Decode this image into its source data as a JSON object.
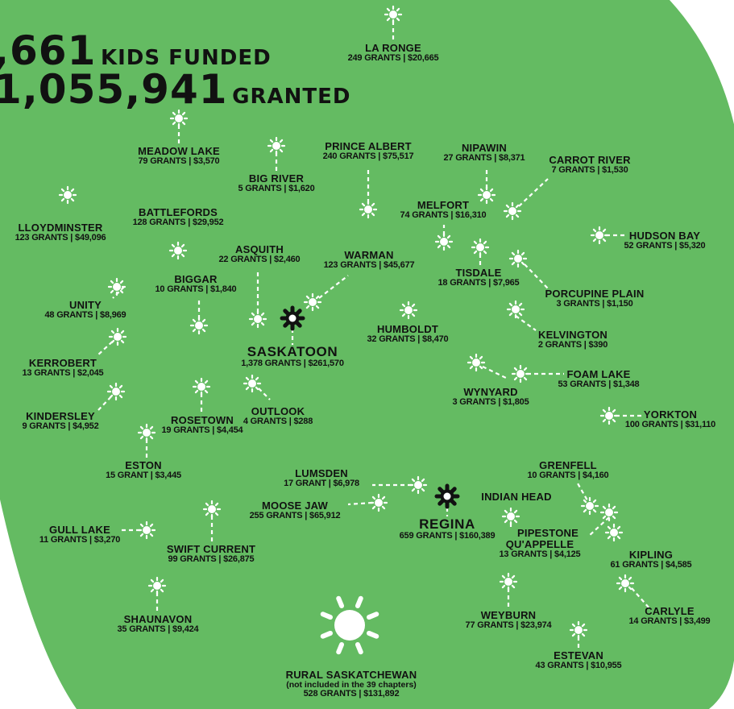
{
  "colors": {
    "region": "#64bb62",
    "marker": "#ffffff",
    "major_city_marker": "#111111",
    "text": "#111111"
  },
  "headline": {
    "kids_number": ",661",
    "kids_label": "KIDS FUNDED",
    "granted_number": "1,055,941",
    "granted_label": "GRANTED"
  },
  "icons": {
    "marker": "sun-icon",
    "major_city": "sun-gear-icon"
  },
  "cities": [
    {
      "key": "la-ronge",
      "name": "LA RONGE",
      "stats": "249 GRANTS | $20,665"
    },
    {
      "key": "meadow-lake",
      "name": "MEADOW LAKE",
      "stats": "79 GRANTS | $3,570"
    },
    {
      "key": "big-river",
      "name": "BIG RIVER",
      "stats": "5 GRANTS | $1,620"
    },
    {
      "key": "prince-albert",
      "name": "PRINCE ALBERT",
      "stats": "240 GRANTS | $75,517"
    },
    {
      "key": "nipawin",
      "name": "NIPAWIN",
      "stats": "27 GRANTS | $8,371"
    },
    {
      "key": "carrot-river",
      "name": "CARROT RIVER",
      "stats": "7 GRANTS | $1,530"
    },
    {
      "key": "melfort",
      "name": "MELFORT",
      "stats": "74 GRANTS | $16,310"
    },
    {
      "key": "lloydminster",
      "name": "LLOYDMINSTER",
      "stats": "123 GRANTS | $49,096"
    },
    {
      "key": "battlefords",
      "name": "BATTLEFORDS",
      "stats": "128 GRANTS | $29,952"
    },
    {
      "key": "hudson-bay",
      "name": "HUDSON BAY",
      "stats": "52 GRANTS | $5,320"
    },
    {
      "key": "asquith",
      "name": "ASQUITH",
      "stats": "22 GRANTS | $2,460"
    },
    {
      "key": "warman",
      "name": "WARMAN",
      "stats": "123 GRANTS | $45,677"
    },
    {
      "key": "tisdale",
      "name": "TISDALE",
      "stats": "18 GRANTS | $7,965"
    },
    {
      "key": "biggar",
      "name": "BIGGAR",
      "stats": "10 GRANTS | $1,840"
    },
    {
      "key": "porcupine-plain",
      "name": "PORCUPINE PLAIN",
      "stats": "3 GRANTS | $1,150"
    },
    {
      "key": "unity",
      "name": "UNITY",
      "stats": "48 GRANTS | $8,969"
    },
    {
      "key": "humboldt",
      "name": "HUMBOLDT",
      "stats": "32 GRANTS | $8,470"
    },
    {
      "key": "kelvington",
      "name": "KELVINGTON",
      "stats": "2 GRANTS | $390"
    },
    {
      "key": "saskatoon",
      "name": "SASKATOON",
      "stats": "1,378 GRANTS | $261,570"
    },
    {
      "key": "kerrobert",
      "name": "KERROBERT",
      "stats": "13 GRANTS | $2,045"
    },
    {
      "key": "foam-lake",
      "name": "FOAM LAKE",
      "stats": "53 GRANTS | $1,348"
    },
    {
      "key": "wynyard",
      "name": "WYNYARD",
      "stats": "3 GRANTS | $1,805"
    },
    {
      "key": "outlook",
      "name": "OUTLOOK",
      "stats": "4 GRANTS | $288"
    },
    {
      "key": "kindersley",
      "name": "KINDERSLEY",
      "stats": "9 GRANTS | $4,952"
    },
    {
      "key": "rosetown",
      "name": "ROSETOWN",
      "stats": "19 GRANTS | $4,454"
    },
    {
      "key": "yorkton",
      "name": "YORKTON",
      "stats": "100 GRANTS | $31,110"
    },
    {
      "key": "eston",
      "name": "ESTON",
      "stats": "15 GRANT | $3,445"
    },
    {
      "key": "grenfell",
      "name": "GRENFELL",
      "stats": "10 GRANTS | $4,160"
    },
    {
      "key": "lumsden",
      "name": "LUMSDEN",
      "stats": "17 GRANT | $6,978"
    },
    {
      "key": "moose-jaw",
      "name": "MOOSE JAW",
      "stats": "255 GRANTS | $65,912"
    },
    {
      "key": "indian-head",
      "name": "INDIAN HEAD",
      "stats": ""
    },
    {
      "key": "regina",
      "name": "REGINA",
      "stats": "659 GRANTS | $160,389"
    },
    {
      "key": "pipestone",
      "name": "PIPESTONE",
      "stats": ""
    },
    {
      "key": "quappelle",
      "name": "QU'APPELLE",
      "stats": "13 GRANTS | $4,125"
    },
    {
      "key": "gull-lake",
      "name": "GULL LAKE",
      "stats": "11 GRANTS | $3,270"
    },
    {
      "key": "swift-current",
      "name": "SWIFT CURRENT",
      "stats": "99 GRANTS | $26,875"
    },
    {
      "key": "kipling",
      "name": "KIPLING",
      "stats": "61 GRANTS | $4,585"
    },
    {
      "key": "weyburn",
      "name": "WEYBURN",
      "stats": "77 GRANTS | $23,974"
    },
    {
      "key": "carlyle",
      "name": "CARLYLE",
      "stats": "14 GRANTS | $3,499"
    },
    {
      "key": "shaunavon",
      "name": "SHAUNAVON",
      "stats": "35 GRANTS | $9,424"
    },
    {
      "key": "estevan",
      "name": "ESTEVAN",
      "stats": "43 GRANTS | $10,955"
    }
  ],
  "rural": {
    "name": "RURAL SASKATCHEWAN",
    "note": "(not included in the 39 chapters)",
    "stats": "528 GRANTS | $131,892"
  }
}
